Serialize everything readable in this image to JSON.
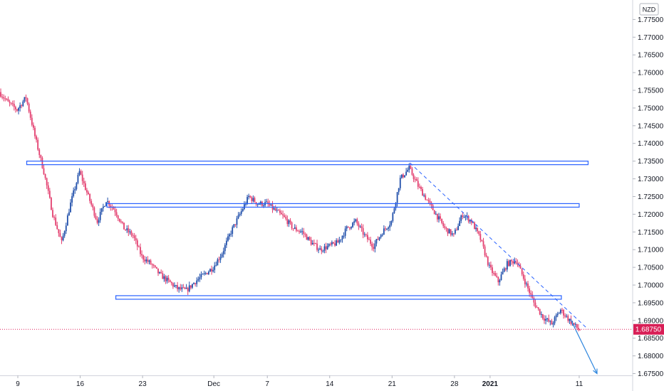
{
  "chart_data": {
    "type": "candlestick",
    "currency_label": "NZD",
    "current_price": 1.6875,
    "current_price_label": "1.68750",
    "y_axis": {
      "range": [
        1.6745,
        1.7805
      ],
      "ticks": [
        "1.67500",
        "1.68000",
        "1.68500",
        "1.69000",
        "1.69500",
        "1.70000",
        "1.70500",
        "1.71000",
        "1.71500",
        "1.72000",
        "1.72500",
        "1.73000",
        "1.73500",
        "1.74000",
        "1.74500",
        "1.75000",
        "1.75500",
        "1.76000",
        "1.76500",
        "1.77000",
        "1.77500"
      ]
    },
    "x_axis": {
      "range": [
        "2020-11-07",
        "2021-01-17"
      ],
      "ticks": [
        {
          "label": "9",
          "date": "2020-11-09",
          "bold": false
        },
        {
          "label": "16",
          "date": "2020-11-16",
          "bold": false
        },
        {
          "label": "23",
          "date": "2020-11-23",
          "bold": false
        },
        {
          "label": "Dec",
          "date": "2020-12-01",
          "bold": false
        },
        {
          "label": "7",
          "date": "2020-12-07",
          "bold": false
        },
        {
          "label": "14",
          "date": "2020-12-14",
          "bold": false
        },
        {
          "label": "21",
          "date": "2020-12-21",
          "bold": false
        },
        {
          "label": "28",
          "date": "2020-12-28",
          "bold": false
        },
        {
          "label": "2021",
          "date": "2021-01-01",
          "bold": true
        },
        {
          "label": "11",
          "date": "2021-01-11",
          "bold": false
        }
      ]
    },
    "path": [
      [
        "2020-11-07",
        1.7545
      ],
      [
        "2020-11-08",
        1.7515
      ],
      [
        "2020-11-09",
        1.7495
      ],
      [
        "2020-11-10",
        1.753
      ],
      [
        "2020-11-11",
        1.742
      ],
      [
        "2020-11-12",
        1.732
      ],
      [
        "2020-11-13",
        1.72
      ],
      [
        "2020-11-14",
        1.712
      ],
      [
        "2020-11-15",
        1.723
      ],
      [
        "2020-11-16",
        1.732
      ],
      [
        "2020-11-17",
        1.725
      ],
      [
        "2020-11-18",
        1.718
      ],
      [
        "2020-11-19",
        1.724
      ],
      [
        "2020-11-20",
        1.721
      ],
      [
        "2020-11-21",
        1.716
      ],
      [
        "2020-11-22",
        1.714
      ],
      [
        "2020-11-23",
        1.708
      ],
      [
        "2020-11-24",
        1.706
      ],
      [
        "2020-11-25",
        1.703
      ],
      [
        "2020-11-26",
        1.701
      ],
      [
        "2020-11-27",
        1.699
      ],
      [
        "2020-11-28",
        1.6985
      ],
      [
        "2020-11-29",
        1.701
      ],
      [
        "2020-11-30",
        1.703
      ],
      [
        "2020-12-01",
        1.705
      ],
      [
        "2020-12-02",
        1.709
      ],
      [
        "2020-12-03",
        1.715
      ],
      [
        "2020-12-04",
        1.72
      ],
      [
        "2020-12-05",
        1.725
      ],
      [
        "2020-12-06",
        1.723
      ],
      [
        "2020-12-07",
        1.723
      ],
      [
        "2020-12-08",
        1.721
      ],
      [
        "2020-12-09",
        1.719
      ],
      [
        "2020-12-10",
        1.716
      ],
      [
        "2020-12-11",
        1.715
      ],
      [
        "2020-12-12",
        1.712
      ],
      [
        "2020-12-13",
        1.71
      ],
      [
        "2020-12-14",
        1.711
      ],
      [
        "2020-12-15",
        1.712
      ],
      [
        "2020-12-16",
        1.716
      ],
      [
        "2020-12-17",
        1.718
      ],
      [
        "2020-12-18",
        1.714
      ],
      [
        "2020-12-19",
        1.711
      ],
      [
        "2020-12-20",
        1.715
      ],
      [
        "2020-12-21",
        1.718
      ],
      [
        "2020-12-22",
        1.73
      ],
      [
        "2020-12-23",
        1.733
      ],
      [
        "2020-12-24",
        1.728
      ],
      [
        "2020-12-25",
        1.724
      ],
      [
        "2020-12-26",
        1.72
      ],
      [
        "2020-12-27",
        1.716
      ],
      [
        "2020-12-28",
        1.714
      ],
      [
        "2020-12-29",
        1.72
      ],
      [
        "2020-12-30",
        1.718
      ],
      [
        "2020-12-31",
        1.713
      ],
      [
        "2021-01-01",
        1.705
      ],
      [
        "2021-01-02",
        1.701
      ],
      [
        "2021-01-03",
        1.706
      ],
      [
        "2021-01-04",
        1.707
      ],
      [
        "2021-01-05",
        1.701
      ],
      [
        "2021-01-06",
        1.695
      ],
      [
        "2021-01-07",
        1.691
      ],
      [
        "2021-01-08",
        1.689
      ],
      [
        "2021-01-09",
        1.693
      ],
      [
        "2021-01-10",
        1.69
      ],
      [
        "2021-01-11",
        1.6875
      ]
    ],
    "annotations": {
      "horizontal_levels": [
        {
          "name": "resistance-1",
          "price": 1.7345,
          "from": "2020-11-10",
          "to": "2021-01-12"
        },
        {
          "name": "resistance-2",
          "price": 1.7225,
          "from": "2020-11-19",
          "to": "2021-01-11"
        },
        {
          "name": "support-1",
          "price": 1.6965,
          "from": "2020-11-20",
          "to": "2021-01-09"
        }
      ],
      "trendline_dashed": {
        "from": [
          "2020-12-23",
          1.7345
        ],
        "to": [
          "2021-01-12",
          1.6875
        ]
      },
      "projection_arrow": {
        "from": [
          "2021-01-10",
          1.6905
        ],
        "to": [
          "2021-01-13",
          1.675
        ]
      }
    },
    "colors": {
      "up": "#26a69a",
      "up_body": "#1f4eaa",
      "down": "#e33f6f",
      "level": "#2962ff",
      "arrow": "#2e86de",
      "price_line": "#e0245e",
      "price_badge": "#d81e56"
    }
  }
}
